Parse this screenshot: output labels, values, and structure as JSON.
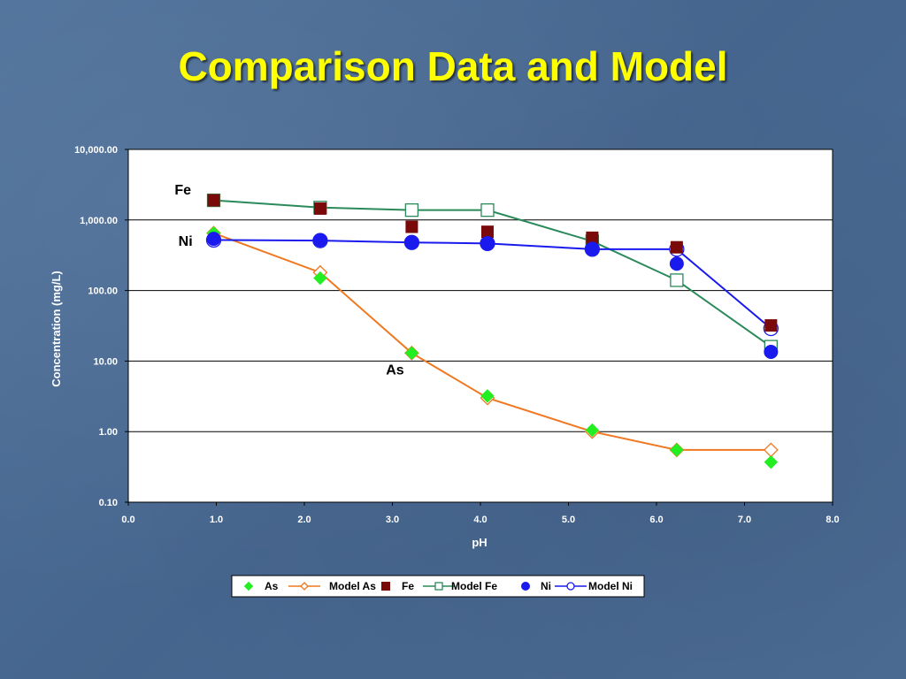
{
  "slide": {
    "title": "Comparison Data and Model"
  },
  "chart_data": {
    "type": "scatter",
    "title": "",
    "xlabel": "pH",
    "ylabel": "Concentration (mg/L)",
    "xlim": [
      0,
      8
    ],
    "ylim": [
      0.1,
      10000
    ],
    "y_scale": "log",
    "x_ticks": [
      "0.0",
      "1.0",
      "2.0",
      "3.0",
      "4.0",
      "5.0",
      "6.0",
      "7.0",
      "8.0"
    ],
    "y_ticks": [
      "0.10",
      "1.00",
      "10.00",
      "100.00",
      "1,000.00",
      "10,000.00"
    ],
    "grid": "horizontal",
    "legend_position": "bottom",
    "annotations": [
      {
        "text": "Fe",
        "x": 0.62,
        "y": 2300
      },
      {
        "text": "Ni",
        "x": 0.65,
        "y": 430
      },
      {
        "text": "As",
        "x": 3.03,
        "y": 6.5
      }
    ],
    "series": [
      {
        "name": "As",
        "kind": "data",
        "marker": "diamond-filled",
        "color": "#22ee22",
        "x": [
          0.97,
          2.18,
          3.22,
          4.08,
          5.27,
          6.23,
          7.3
        ],
        "y": [
          650,
          150,
          13,
          3.2,
          1.05,
          0.55,
          0.37
        ]
      },
      {
        "name": "Model As",
        "kind": "model",
        "marker": "diamond-open",
        "color": "#f07820",
        "x": [
          0.97,
          2.18,
          3.22,
          4.08,
          5.27,
          6.23,
          7.3
        ],
        "y": [
          650,
          180,
          13,
          3.0,
          1.0,
          0.55,
          0.55
        ]
      },
      {
        "name": "Fe",
        "kind": "data",
        "marker": "square-filled",
        "color": "#7a0a0a",
        "x": [
          0.97,
          2.18,
          3.22,
          4.08,
          5.27,
          6.23,
          7.3
        ],
        "y": [
          1900,
          1450,
          800,
          680,
          560,
          410,
          32
        ]
      },
      {
        "name": "Model Fe",
        "kind": "model",
        "marker": "square-open",
        "color": "#2a8a5a",
        "x": [
          0.97,
          2.18,
          3.22,
          4.08,
          5.27,
          6.23,
          7.3
        ],
        "y": [
          1900,
          1500,
          1380,
          1380,
          500,
          140,
          16
        ]
      },
      {
        "name": "Ni",
        "kind": "data",
        "marker": "circle-filled",
        "color": "#1a1aee",
        "x": [
          0.97,
          2.18,
          3.22,
          4.08,
          5.27,
          6.23,
          7.3
        ],
        "y": [
          540,
          520,
          480,
          470,
          390,
          240,
          13.5
        ]
      },
      {
        "name": "Model Ni",
        "kind": "model",
        "marker": "circle-open",
        "color": "#1a1aee",
        "x": [
          0.97,
          2.18,
          3.22,
          4.08,
          5.27,
          6.23,
          7.3
        ],
        "y": [
          520,
          510,
          480,
          465,
          385,
          385,
          29
        ]
      }
    ]
  }
}
